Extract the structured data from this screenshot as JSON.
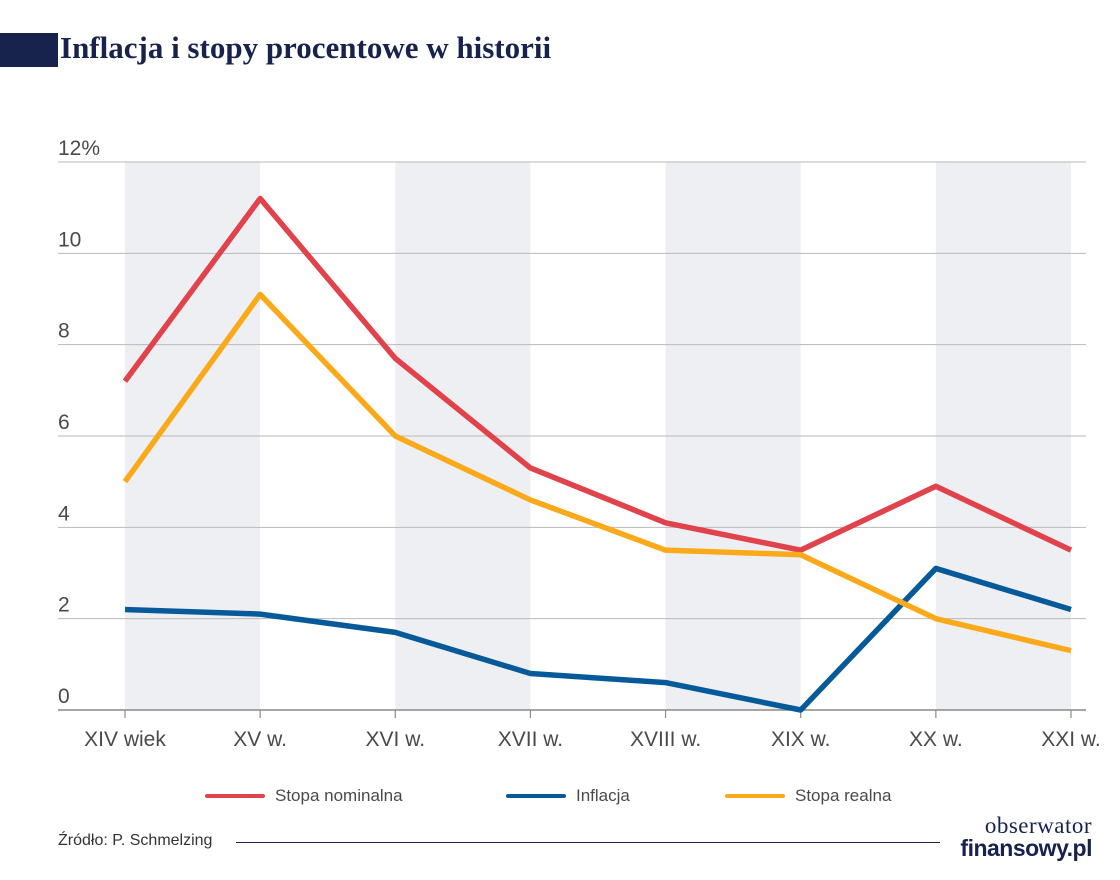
{
  "header": {
    "title": "Inflacja i stopy procentowe w historii"
  },
  "source": "Źródło: P. Schmelzing",
  "brand": {
    "line1": "obserwator",
    "line2": "finansowy.pl"
  },
  "chart_data": {
    "type": "line",
    "title": "Inflacja i stopy procentowe w historii",
    "categories": [
      "XIV wiek",
      "XV w.",
      "XVI w.",
      "XVII w.",
      "XVIII w.",
      "XIX w.",
      "XX w.",
      "XXI w."
    ],
    "y_ticks": [
      "0",
      "2",
      "4",
      "6",
      "8",
      "10",
      "12%"
    ],
    "y_tick_values": [
      0,
      2,
      4,
      6,
      8,
      10,
      12
    ],
    "ylim": [
      0,
      12
    ],
    "grid": true,
    "alternating_bands": true,
    "legend_position": "bottom",
    "series": [
      {
        "name": "Stopa nominalna",
        "color": "#e0434b",
        "values": [
          7.2,
          11.2,
          7.7,
          5.3,
          4.1,
          3.5,
          4.9,
          3.5
        ]
      },
      {
        "name": "Inflacja",
        "color": "#075a99",
        "values": [
          2.2,
          2.1,
          1.7,
          0.8,
          0.6,
          0.0,
          3.1,
          2.2
        ]
      },
      {
        "name": "Stopa realna",
        "color": "#f9a91a",
        "values": [
          5.0,
          9.1,
          6.0,
          4.6,
          3.5,
          3.4,
          2.0,
          1.3
        ]
      }
    ]
  }
}
